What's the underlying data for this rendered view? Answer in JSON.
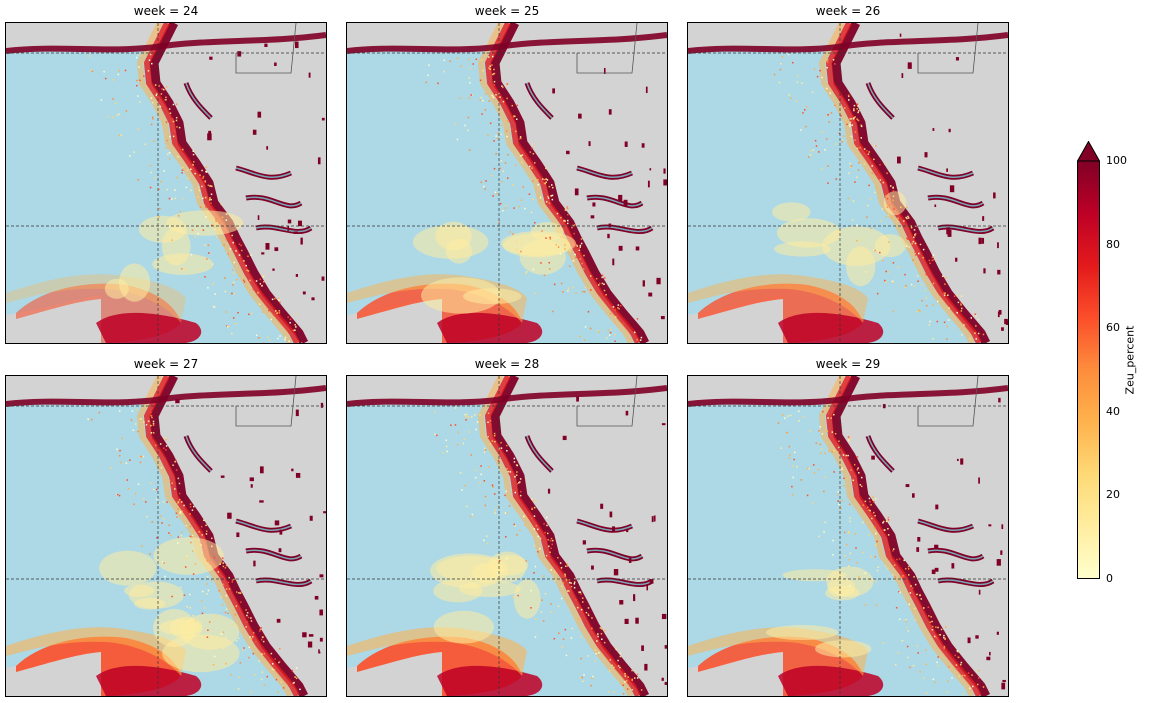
{
  "facet_label_prefix": "week = ",
  "panels": [
    {
      "week": "24",
      "title": "week = 24"
    },
    {
      "week": "25",
      "title": "week = 25"
    },
    {
      "week": "26",
      "title": "week = 26"
    },
    {
      "week": "27",
      "title": "week = 27"
    },
    {
      "week": "28",
      "title": "week = 28"
    },
    {
      "week": "29",
      "title": "week = 29"
    }
  ],
  "colorbar": {
    "label": "Zeu_percent",
    "ticks": [
      "0",
      "20",
      "40",
      "60",
      "80",
      "100"
    ],
    "range": [
      0,
      100
    ],
    "colormap": "YlOrRd",
    "extend": "max",
    "colors": [
      "#ffffcc",
      "#ffeda0",
      "#fed976",
      "#feb24c",
      "#fd8d3c",
      "#fc4e2a",
      "#e31a1c",
      "#bd0026",
      "#800026"
    ]
  },
  "map_colors": {
    "sea": "#add8e6",
    "land": "#d3d3d3",
    "river": "#7aa6b8",
    "gridline": "#333333"
  },
  "legend_placement": "right"
}
